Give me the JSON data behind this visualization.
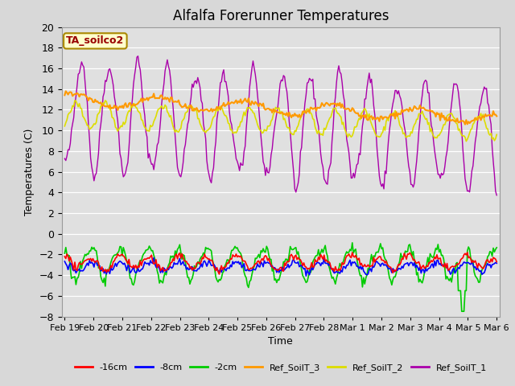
{
  "title": "Alfalfa Forerunner Temperatures",
  "xlabel": "Time",
  "ylabel": "Temperatures (C)",
  "ylim": [
    -8,
    20
  ],
  "yticks": [
    -8,
    -6,
    -4,
    -2,
    0,
    2,
    4,
    6,
    8,
    10,
    12,
    14,
    16,
    18,
    20
  ],
  "legend_labels": [
    "-16cm",
    "-8cm",
    "-2cm",
    "Ref_SoilT_3",
    "Ref_SoilT_2",
    "Ref_SoilT_1"
  ],
  "legend_colors": [
    "#ff0000",
    "#0000ff",
    "#00cc00",
    "#ff9900",
    "#dddd00",
    "#aa00aa"
  ],
  "annotation_text": "TA_soilco2",
  "annotation_bg": "#ffffcc",
  "annotation_fg": "#990000",
  "date_labels": [
    "Feb 19",
    "Feb 20",
    "Feb 21",
    "Feb 22",
    "Feb 23",
    "Feb 24",
    "Feb 25",
    "Feb 26",
    "Feb 27",
    "Feb 28",
    "Mar 1",
    "Mar 2",
    "Mar 3",
    "Mar 4",
    "Mar 5",
    "Mar 6"
  ],
  "title_fontsize": 12,
  "axis_fontsize": 9,
  "legend_fontsize": 8
}
